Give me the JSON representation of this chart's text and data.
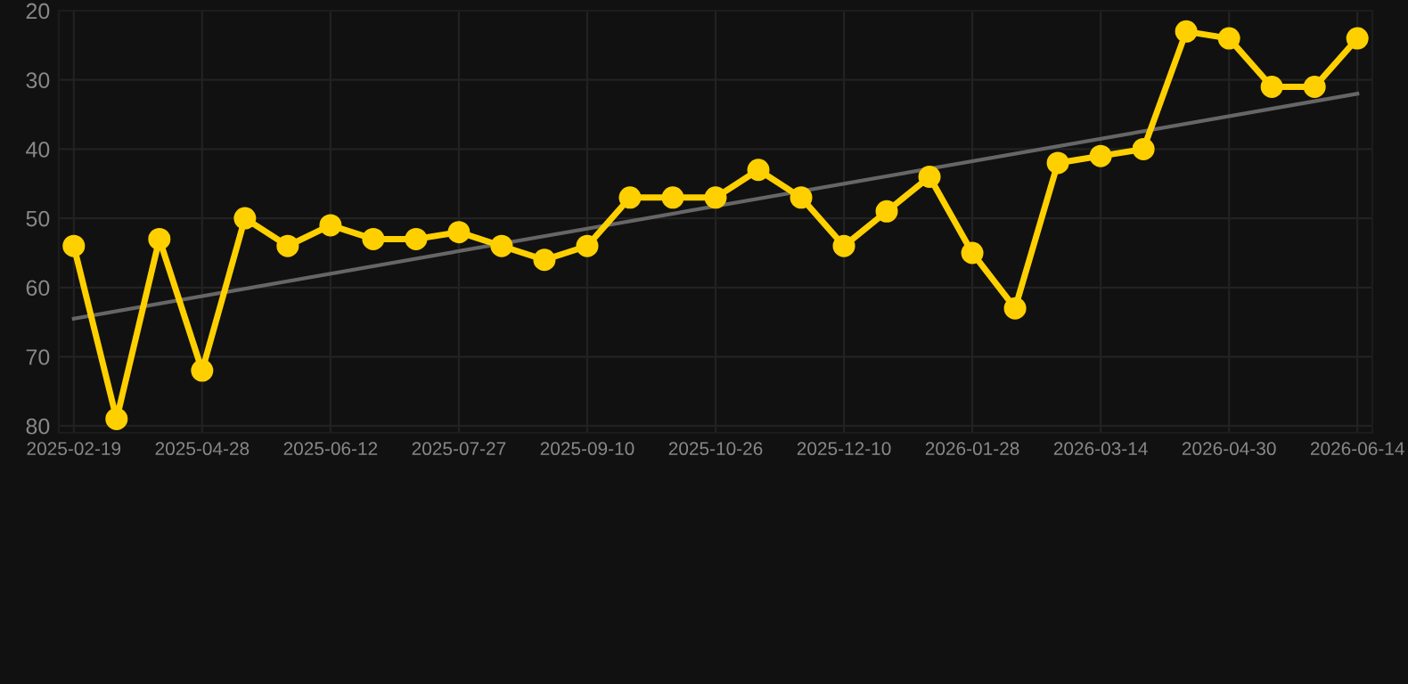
{
  "chart_data": {
    "type": "line",
    "categories": [
      "2025-02-19",
      null,
      null,
      "2025-04-28",
      null,
      null,
      "2025-06-12",
      null,
      null,
      "2025-07-27",
      null,
      null,
      "2025-09-10",
      null,
      null,
      "2025-10-26",
      null,
      null,
      "2025-12-10",
      null,
      null,
      "2026-01-28",
      null,
      null,
      "2026-03-14",
      null,
      null,
      "2026-04-30",
      null,
      null,
      "2026-06-14"
    ],
    "series": [
      {
        "color": "#ffd000",
        "marker": "circle",
        "values": [
          54,
          79,
          53,
          72,
          50,
          54,
          51,
          53,
          53,
          52,
          54,
          56,
          54,
          47,
          47,
          47,
          43,
          47,
          54,
          49,
          44,
          55,
          63,
          42,
          41,
          40,
          23,
          24,
          31,
          31,
          24
        ]
      },
      {
        "type": "line",
        "color": "#666666",
        "marker": "none",
        "values": [
          64.5,
          null,
          null,
          null,
          null,
          null,
          null,
          null,
          null,
          null,
          null,
          null,
          null,
          null,
          null,
          null,
          null,
          null,
          null,
          null,
          null,
          null,
          null,
          null,
          null,
          null,
          null,
          null,
          null,
          null,
          32
        ]
      }
    ],
    "ylim": [
      81,
      20
    ],
    "yticks": [
      20,
      30,
      40,
      50,
      60,
      70,
      80
    ],
    "grid": true,
    "line_style": "solid"
  }
}
